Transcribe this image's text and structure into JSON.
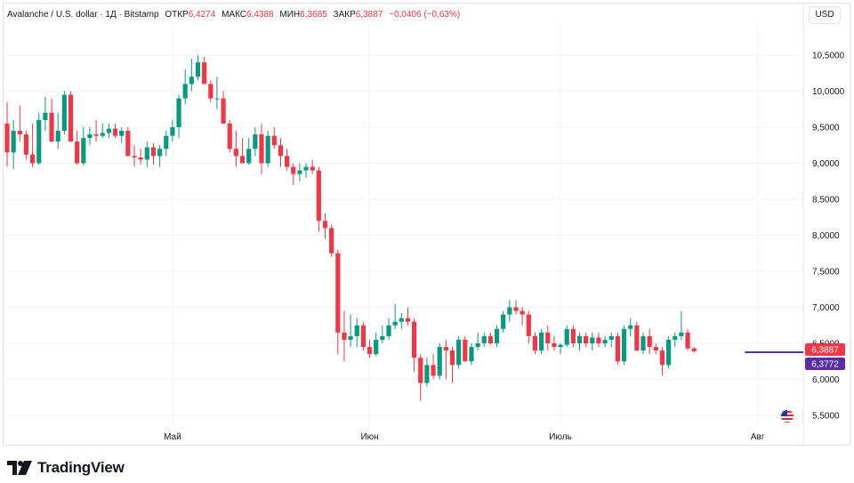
{
  "header": {
    "symbol": "Avalanche / U.S. dollar · 1Д · Bitstamp",
    "open_label": "ОТКР",
    "open_value": "6,4274",
    "high_label": "МАКС",
    "high_value": "6,4388",
    "low_label": "МИН",
    "low_value": "6,3685",
    "close_label": "ЗАКР",
    "close_value": "6,3887",
    "change": "−0,0406 (−0,63%)"
  },
  "currency_button": "USD",
  "brand": {
    "name": "TradingView"
  },
  "colors": {
    "up": "#089981",
    "down": "#f23645",
    "ma_line": "#5b2ca8",
    "grid": "#f0f3fa"
  },
  "chart_data": {
    "type": "candlestick",
    "y_ticks": [
      "10,5000",
      "10,0000",
      "9,5000",
      "9,0000",
      "8,5000",
      "8,0000",
      "7,5000",
      "7,0000",
      "6,5000",
      "6,0000",
      "5,5000"
    ],
    "y_tick_values": [
      10.5,
      10.0,
      9.5,
      9.0,
      8.5,
      8.0,
      7.5,
      7.0,
      6.5,
      6.0,
      5.5
    ],
    "ylim": [
      5.45,
      10.8
    ],
    "x_ticks": [
      {
        "label": "Май",
        "day": 26
      },
      {
        "label": "Июн",
        "day": 57
      },
      {
        "label": "Июль",
        "day": 87
      },
      {
        "label": "Авг",
        "day": 118
      }
    ],
    "last_price": {
      "label": "6,3887",
      "value": 6.3887,
      "color": "#f23645"
    },
    "ma_price": {
      "label": "6,3772",
      "value": 6.3772,
      "color": "#5b2ca8"
    },
    "ma_segment": [
      116,
      128
    ],
    "candles": [
      [
        9.55,
        9.85,
        8.95,
        9.15
      ],
      [
        9.15,
        9.6,
        8.92,
        9.45
      ],
      [
        9.45,
        9.8,
        9.3,
        9.4
      ],
      [
        9.4,
        9.45,
        9.05,
        9.12
      ],
      [
        9.12,
        9.55,
        8.95,
        9.0
      ],
      [
        9.0,
        9.7,
        8.98,
        9.6
      ],
      [
        9.6,
        9.92,
        9.45,
        9.7
      ],
      [
        9.7,
        9.9,
        9.3,
        9.3
      ],
      [
        9.3,
        9.7,
        9.2,
        9.45
      ],
      [
        9.45,
        10.0,
        9.4,
        9.95
      ],
      [
        9.95,
        10.0,
        9.3,
        9.3
      ],
      [
        9.3,
        9.45,
        8.98,
        9.0
      ],
      [
        9.0,
        9.5,
        8.97,
        9.35
      ],
      [
        9.35,
        9.5,
        9.25,
        9.4
      ],
      [
        9.4,
        9.6,
        9.3,
        9.38
      ],
      [
        9.38,
        9.55,
        9.35,
        9.42
      ],
      [
        9.42,
        9.55,
        9.35,
        9.48
      ],
      [
        9.48,
        9.55,
        9.35,
        9.38
      ],
      [
        9.38,
        9.5,
        9.28,
        9.45
      ],
      [
        9.45,
        9.5,
        9.1,
        9.1
      ],
      [
        9.1,
        9.25,
        8.95,
        9.08
      ],
      [
        9.08,
        9.2,
        8.98,
        9.05
      ],
      [
        9.05,
        9.3,
        8.95,
        9.22
      ],
      [
        9.22,
        9.28,
        8.98,
        9.1
      ],
      [
        9.1,
        9.25,
        8.95,
        9.2
      ],
      [
        9.2,
        9.45,
        9.1,
        9.38
      ],
      [
        9.38,
        9.6,
        9.3,
        9.5
      ],
      [
        9.5,
        9.95,
        9.35,
        9.9
      ],
      [
        9.9,
        10.3,
        9.82,
        10.1
      ],
      [
        10.1,
        10.45,
        10.0,
        10.2
      ],
      [
        10.2,
        10.5,
        10.15,
        10.4
      ],
      [
        10.4,
        10.48,
        10.1,
        10.1
      ],
      [
        10.1,
        10.15,
        9.85,
        9.9
      ],
      [
        9.9,
        10.2,
        9.75,
        9.9
      ],
      [
        9.9,
        10.0,
        9.55,
        9.55
      ],
      [
        9.55,
        9.6,
        9.15,
        9.2
      ],
      [
        9.2,
        9.45,
        8.95,
        9.1
      ],
      [
        9.1,
        9.35,
        9.0,
        9.0
      ],
      [
        9.0,
        9.35,
        8.98,
        9.2
      ],
      [
        9.2,
        9.5,
        9.1,
        9.4
      ],
      [
        9.4,
        9.55,
        8.85,
        9.0
      ],
      [
        9.0,
        9.45,
        8.95,
        9.38
      ],
      [
        9.38,
        9.5,
        9.2,
        9.25
      ],
      [
        9.25,
        9.35,
        8.95,
        9.1
      ],
      [
        9.1,
        9.2,
        8.9,
        8.95
      ],
      [
        8.95,
        9.0,
        8.7,
        8.85
      ],
      [
        8.85,
        9.0,
        8.75,
        8.9
      ],
      [
        8.9,
        9.0,
        8.8,
        8.95
      ],
      [
        8.95,
        9.05,
        8.85,
        8.9
      ],
      [
        8.9,
        8.95,
        8.05,
        8.2
      ],
      [
        8.2,
        8.3,
        7.95,
        8.1
      ],
      [
        8.1,
        8.15,
        7.7,
        7.75
      ],
      [
        7.75,
        7.8,
        6.35,
        6.65
      ],
      [
        6.65,
        6.95,
        6.25,
        6.55
      ],
      [
        6.55,
        6.9,
        6.45,
        6.6
      ],
      [
        6.6,
        6.85,
        6.45,
        6.75
      ],
      [
        6.75,
        6.8,
        6.4,
        6.45
      ],
      [
        6.45,
        6.55,
        6.3,
        6.35
      ],
      [
        6.35,
        6.65,
        6.32,
        6.55
      ],
      [
        6.55,
        6.75,
        6.5,
        6.6
      ],
      [
        6.6,
        6.85,
        6.55,
        6.75
      ],
      [
        6.75,
        7.05,
        6.7,
        6.8
      ],
      [
        6.8,
        6.92,
        6.7,
        6.85
      ],
      [
        6.85,
        7.0,
        6.75,
        6.8
      ],
      [
        6.8,
        6.85,
        6.1,
        6.3
      ],
      [
        6.3,
        6.35,
        5.7,
        5.95
      ],
      [
        5.95,
        6.3,
        5.9,
        6.2
      ],
      [
        6.2,
        6.35,
        6.0,
        6.05
      ],
      [
        6.05,
        6.5,
        6.0,
        6.45
      ],
      [
        6.45,
        6.55,
        6.0,
        6.4
      ],
      [
        6.4,
        6.45,
        5.95,
        6.2
      ],
      [
        6.2,
        6.6,
        6.15,
        6.55
      ],
      [
        6.55,
        6.6,
        6.25,
        6.25
      ],
      [
        6.25,
        6.5,
        6.2,
        6.45
      ],
      [
        6.45,
        6.65,
        6.4,
        6.5
      ],
      [
        6.5,
        6.65,
        6.45,
        6.6
      ],
      [
        6.6,
        6.65,
        6.48,
        6.5
      ],
      [
        6.5,
        6.75,
        6.45,
        6.7
      ],
      [
        6.7,
        6.95,
        6.65,
        6.9
      ],
      [
        6.9,
        7.1,
        6.8,
        7.0
      ],
      [
        7.0,
        7.1,
        6.9,
        6.95
      ],
      [
        6.95,
        7.0,
        6.75,
        6.9
      ],
      [
        6.9,
        6.95,
        6.5,
        6.6
      ],
      [
        6.6,
        6.65,
        6.35,
        6.4
      ],
      [
        6.4,
        6.7,
        6.35,
        6.65
      ],
      [
        6.65,
        6.75,
        6.4,
        6.5
      ],
      [
        6.5,
        6.6,
        6.4,
        6.45
      ],
      [
        6.45,
        6.5,
        6.35,
        6.48
      ],
      [
        6.48,
        6.75,
        6.45,
        6.7
      ],
      [
        6.7,
        6.75,
        6.45,
        6.5
      ],
      [
        6.5,
        6.65,
        6.4,
        6.6
      ],
      [
        6.6,
        6.65,
        6.45,
        6.5
      ],
      [
        6.5,
        6.65,
        6.4,
        6.58
      ],
      [
        6.58,
        6.65,
        6.45,
        6.5
      ],
      [
        6.5,
        6.6,
        6.45,
        6.55
      ],
      [
        6.55,
        6.65,
        6.45,
        6.6
      ],
      [
        6.6,
        6.65,
        6.2,
        6.25
      ],
      [
        6.25,
        6.75,
        6.2,
        6.7
      ],
      [
        6.7,
        6.85,
        6.6,
        6.75
      ],
      [
        6.75,
        6.8,
        6.4,
        6.4
      ],
      [
        6.4,
        6.65,
        6.35,
        6.6
      ],
      [
        6.6,
        6.7,
        6.35,
        6.45
      ],
      [
        6.45,
        6.5,
        6.35,
        6.4
      ],
      [
        6.4,
        6.45,
        6.05,
        6.2
      ],
      [
        6.2,
        6.6,
        6.15,
        6.55
      ],
      [
        6.55,
        6.65,
        6.45,
        6.6
      ],
      [
        6.6,
        6.95,
        6.55,
        6.65
      ],
      [
        6.65,
        6.7,
        6.4,
        6.43
      ],
      [
        6.43,
        6.45,
        6.37,
        6.39
      ]
    ]
  }
}
